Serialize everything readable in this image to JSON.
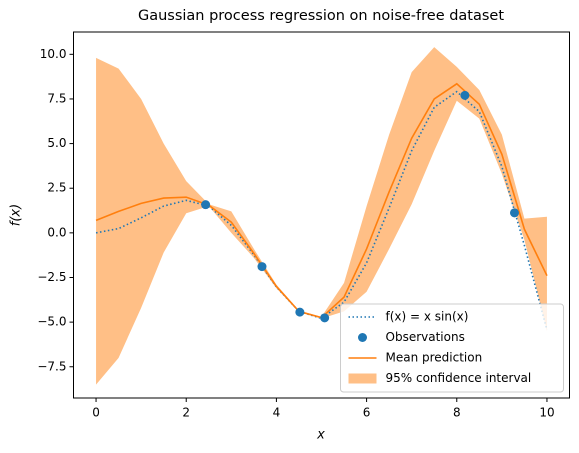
{
  "chart_data": {
    "type": "line",
    "title": "Gaussian process regression on noise-free dataset",
    "x_label": "x",
    "y_label": "f(x)",
    "x": [
      0,
      0.5,
      1,
      1.5,
      2,
      2.5,
      3,
      3.5,
      4,
      4.5,
      5,
      5.5,
      6,
      6.5,
      7,
      7.5,
      8,
      8.5,
      9,
      9.5,
      10
    ],
    "series": [
      {
        "name": "f(x) = x sin(x)",
        "color": "#1f77b4",
        "style": "dotted",
        "values": [
          0,
          0.24,
          0.84,
          1.5,
          1.82,
          1.5,
          0.42,
          -1.23,
          -3.03,
          -4.4,
          -4.79,
          -3.88,
          -1.68,
          1.4,
          4.6,
          7.03,
          7.91,
          6.79,
          3.71,
          -0.71,
          -5.44
        ]
      },
      {
        "name": "Mean prediction",
        "color": "#ff7f0e",
        "style": "solid",
        "values": [
          0.7,
          1.2,
          1.65,
          1.95,
          2.0,
          1.55,
          0.6,
          -1.15,
          -3.0,
          -4.4,
          -4.75,
          -3.6,
          -0.9,
          2.3,
          5.3,
          7.5,
          8.35,
          7.2,
          4.4,
          0.2,
          -2.4
        ]
      }
    ],
    "scatter": {
      "name": "Observations",
      "color": "#1f77b4",
      "x": [
        2.43,
        3.68,
        4.52,
        5.07,
        8.18,
        9.28
      ],
      "values": [
        1.58,
        -1.89,
        -4.44,
        -4.76,
        7.7,
        1.12
      ]
    },
    "band": {
      "name": "95% confidence interval",
      "color": "#ffbf86",
      "lower": [
        -8.5,
        -7.0,
        -4.2,
        -1.1,
        1.1,
        1.5,
        0.0,
        -1.4,
        -3.1,
        -4.45,
        -4.8,
        -4.4,
        -3.3,
        -0.9,
        1.6,
        4.6,
        7.4,
        6.4,
        3.3,
        -0.4,
        -5.5
      ],
      "upper": [
        9.8,
        9.2,
        7.5,
        5.0,
        2.9,
        1.6,
        1.2,
        -0.9,
        -2.9,
        -4.35,
        -4.7,
        -2.8,
        1.5,
        5.5,
        9.0,
        10.4,
        9.3,
        8.0,
        5.5,
        0.8,
        0.9
      ]
    },
    "xlim": [
      -0.5,
      10.5
    ],
    "ylim": [
      -9.25,
      11.25
    ],
    "xticks": [
      0,
      2,
      4,
      6,
      8,
      10
    ],
    "yticks": [
      {
        "value": -7.5,
        "label": "−7.5"
      },
      {
        "value": -5,
        "label": "−5.0"
      },
      {
        "value": -2.5,
        "label": "−2.5"
      },
      {
        "value": 0,
        "label": "0.0"
      },
      {
        "value": 2.5,
        "label": "2.5"
      },
      {
        "value": 5,
        "label": "5.0"
      },
      {
        "value": 7.5,
        "label": "7.5"
      },
      {
        "value": 10,
        "label": "10.0"
      }
    ],
    "grid": false,
    "legend": "lower right"
  }
}
